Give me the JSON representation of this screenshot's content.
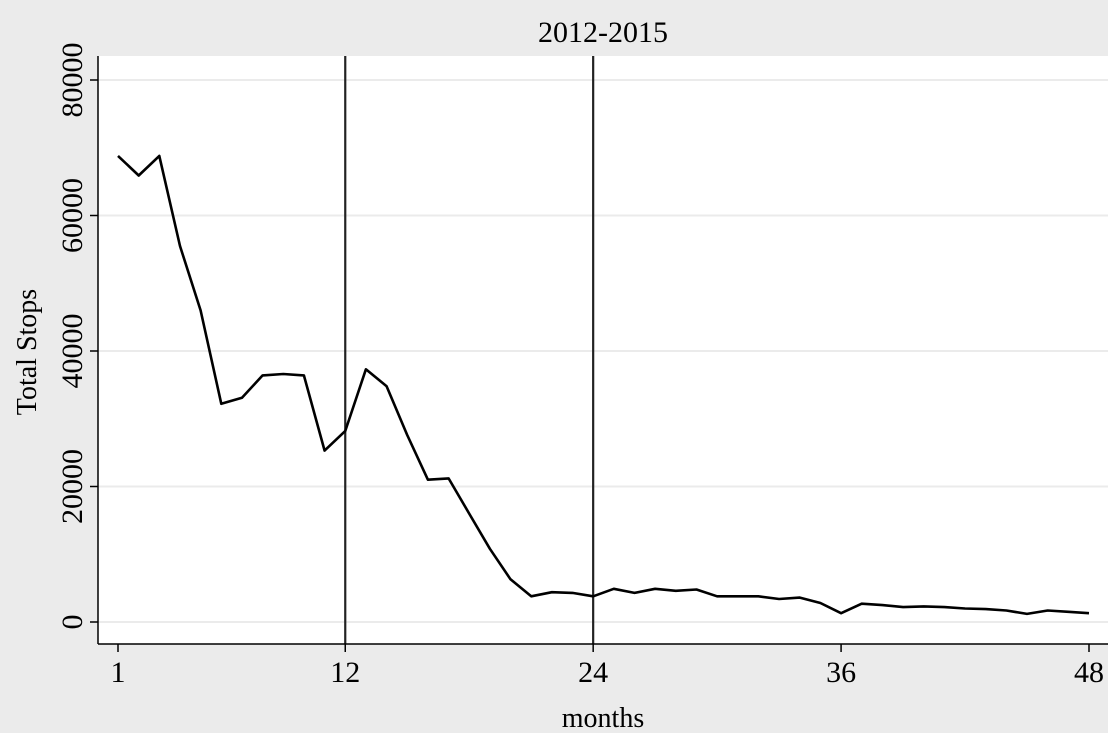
{
  "chart_data": {
    "type": "line",
    "title": "2012-2015",
    "xlabel": "months",
    "ylabel": "Total Stops",
    "xlim": [
      1,
      48
    ],
    "ylim": [
      0,
      80000
    ],
    "x_ticks": [
      1,
      12,
      24,
      36,
      48
    ],
    "y_ticks": [
      0,
      20000,
      40000,
      60000,
      80000
    ],
    "grid": true,
    "reference_lines_x": [
      12,
      24
    ],
    "series": [
      {
        "x": [
          1,
          2,
          3,
          4,
          5,
          6,
          7,
          8,
          9,
          10,
          11,
          12,
          13,
          14,
          15,
          16,
          17,
          18,
          19,
          20,
          21,
          22,
          23,
          24,
          25,
          26,
          27,
          28,
          29,
          30,
          31,
          32,
          33,
          34,
          35,
          36,
          37,
          38,
          39,
          40,
          41,
          42,
          43,
          44,
          45,
          46,
          47,
          48
        ],
        "values": [
          68800,
          65900,
          68800,
          55500,
          46000,
          32200,
          33100,
          36400,
          36600,
          36400,
          25300,
          28200,
          37300,
          34800,
          27600,
          21000,
          21200,
          16000,
          10800,
          6300,
          3800,
          4400,
          4300,
          3800,
          4900,
          4300,
          4900,
          4600,
          4800,
          3800,
          3800,
          3800,
          3400,
          3600,
          2800,
          1300,
          2700,
          2500,
          2200,
          2300,
          2200,
          2000,
          1900,
          1700,
          1200,
          1700,
          1500,
          1300
        ]
      }
    ]
  }
}
